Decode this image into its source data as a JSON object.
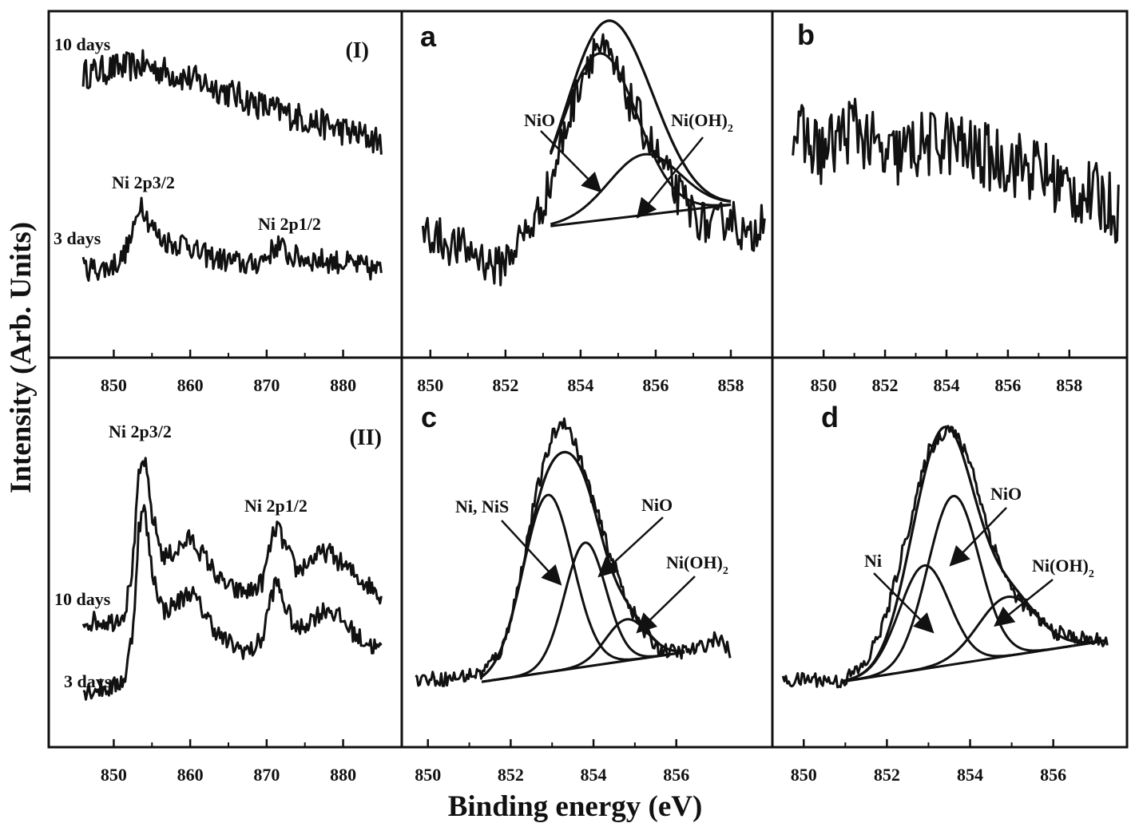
{
  "figure": {
    "ylabel": "Intensity (Arb. Units)",
    "xlabel": "Binding energy (eV)",
    "line_color": "#111111",
    "background": "#ffffff"
  },
  "chart_data": [
    {
      "id": "I",
      "type": "line",
      "panel_label": "(I)",
      "xlim": [
        844,
        886
      ],
      "xticks": [
        "850",
        "860",
        "870",
        "880"
      ],
      "xtick_values": [
        850,
        860,
        870,
        880
      ],
      "annotations": [
        "10 days",
        "Ni 2p3/2",
        "3 days",
        "Ni 2p1/2"
      ],
      "series": [
        {
          "name": "10 days",
          "x": [
            846,
            850,
            854,
            858,
            862,
            866,
            870,
            874,
            878,
            882,
            885
          ],
          "y": [
            0.86,
            0.88,
            0.89,
            0.86,
            0.83,
            0.79,
            0.75,
            0.72,
            0.69,
            0.66,
            0.64
          ],
          "noise": 0.05
        },
        {
          "name": "3 days",
          "x": [
            846,
            849,
            851,
            852.5,
            853.5,
            854.5,
            856,
            858,
            859.5,
            861,
            864,
            868,
            870,
            871.5,
            873,
            876,
            880,
            885
          ],
          "y": [
            0.22,
            0.22,
            0.25,
            0.33,
            0.45,
            0.38,
            0.32,
            0.3,
            0.31,
            0.27,
            0.25,
            0.23,
            0.26,
            0.3,
            0.26,
            0.25,
            0.24,
            0.21
          ],
          "noise": 0.04
        }
      ]
    },
    {
      "id": "II",
      "type": "line",
      "panel_label": "(II)",
      "xlim": [
        844,
        886
      ],
      "xticks": [
        "850",
        "860",
        "870",
        "880"
      ],
      "xtick_values": [
        850,
        860,
        870,
        880
      ],
      "annotations": [
        "Ni 2p3/2",
        "Ni 2p1/2",
        "10 days",
        "3 days"
      ],
      "series": [
        {
          "name": "10 days",
          "x": [
            846,
            850,
            851.5,
            852.5,
            853.3,
            854,
            855,
            856.5,
            858,
            860,
            862,
            864,
            866,
            868,
            869.5,
            870.5,
            871.3,
            872.5,
            874,
            876,
            878,
            880,
            882,
            885
          ],
          "y": [
            0.33,
            0.33,
            0.36,
            0.5,
            0.77,
            0.82,
            0.65,
            0.52,
            0.54,
            0.58,
            0.52,
            0.45,
            0.42,
            0.42,
            0.45,
            0.56,
            0.62,
            0.55,
            0.48,
            0.52,
            0.54,
            0.5,
            0.46,
            0.41
          ],
          "noise": 0.03
        },
        {
          "name": "3 days",
          "x": [
            846,
            850,
            851.5,
            852.5,
            853.3,
            854,
            855,
            856.5,
            858,
            860,
            862,
            864,
            866,
            868,
            869.5,
            870.5,
            871.3,
            872.5,
            874,
            876,
            878,
            880,
            882,
            885
          ],
          "y": [
            0.12,
            0.13,
            0.16,
            0.3,
            0.62,
            0.67,
            0.48,
            0.36,
            0.38,
            0.42,
            0.35,
            0.28,
            0.25,
            0.24,
            0.28,
            0.4,
            0.45,
            0.37,
            0.3,
            0.34,
            0.37,
            0.33,
            0.28,
            0.24
          ],
          "noise": 0.03
        }
      ]
    },
    {
      "id": "a",
      "type": "line",
      "panel_label": "a",
      "xlim": [
        849.6,
        859
      ],
      "xticks": [
        "850",
        "852",
        "854",
        "856",
        "858"
      ],
      "xtick_values": [
        850,
        852,
        854,
        856,
        858
      ],
      "annotations": [
        "NiO",
        "Ni(OH)2"
      ],
      "series": [
        {
          "name": "raw",
          "x": [
            849.8,
            850.5,
            851.2,
            851.8,
            852.3,
            852.8,
            853.2,
            853.6,
            854,
            854.4,
            854.8,
            855.2,
            855.6,
            856,
            856.5,
            857,
            857.5,
            858,
            858.5,
            858.9
          ],
          "y": [
            0.35,
            0.3,
            0.27,
            0.22,
            0.3,
            0.38,
            0.5,
            0.68,
            0.85,
            0.96,
            0.9,
            0.8,
            0.7,
            0.6,
            0.48,
            0.4,
            0.35,
            0.4,
            0.3,
            0.42
          ],
          "noise": 0.07
        }
      ],
      "components": [
        {
          "name": "NiO",
          "center": 854.5,
          "sigma": 1.0,
          "amplitude": 0.55
        },
        {
          "name": "Ni(OH)2",
          "center": 855.7,
          "sigma": 0.95,
          "amplitude": 0.2
        }
      ],
      "baseline": {
        "x": [
          853.2,
          858
        ],
        "y": [
          0.36,
          0.43
        ]
      }
    },
    {
      "id": "b",
      "type": "line",
      "panel_label": "b",
      "xlim": [
        848.8,
        859.8
      ],
      "xticks": [
        "850",
        "852",
        "854",
        "856",
        "858"
      ],
      "xtick_values": [
        850,
        852,
        854,
        856,
        858
      ],
      "annotations": [],
      "series": [
        {
          "name": "raw",
          "x": [
            849,
            850,
            851,
            852,
            853,
            854,
            855,
            856,
            857,
            858,
            859,
            859.6
          ],
          "y": [
            0.65,
            0.58,
            0.68,
            0.55,
            0.6,
            0.62,
            0.57,
            0.55,
            0.52,
            0.45,
            0.42,
            0.38
          ],
          "noise": 0.12
        }
      ]
    },
    {
      "id": "c",
      "type": "line",
      "panel_label": "c",
      "xlim": [
        849.6,
        857.8
      ],
      "xticks": [
        "850",
        "852",
        "854",
        "856"
      ],
      "xtick_values": [
        850,
        852,
        854,
        856
      ],
      "annotations": [
        "Ni, NiS",
        "NiO",
        "Ni(OH)2"
      ],
      "series": [
        {
          "name": "raw",
          "x": [
            849.7,
            850.5,
            851.3,
            851.8,
            852.2,
            852.6,
            853,
            853.3,
            853.6,
            854,
            854.4,
            854.8,
            855.2,
            855.6,
            856,
            856.5,
            857,
            857.3
          ],
          "y": [
            0.08,
            0.08,
            0.1,
            0.18,
            0.4,
            0.7,
            0.9,
            0.96,
            0.86,
            0.68,
            0.5,
            0.35,
            0.24,
            0.18,
            0.17,
            0.18,
            0.22,
            0.17
          ],
          "noise": 0.025
        }
      ],
      "components": [
        {
          "name": "Ni, NiS",
          "center": 852.9,
          "sigma": 0.6,
          "amplitude": 0.6
        },
        {
          "name": "NiO",
          "center": 853.8,
          "sigma": 0.5,
          "amplitude": 0.42
        },
        {
          "name": "Ni(OH)2",
          "center": 854.8,
          "sigma": 0.5,
          "amplitude": 0.14
        }
      ],
      "baseline": {
        "x": [
          851.3,
          856.2
        ],
        "y": [
          0.07,
          0.17
        ]
      }
    },
    {
      "id": "d",
      "type": "line",
      "panel_label": "d",
      "xlim": [
        849.4,
        857.6
      ],
      "xticks": [
        "850",
        "852",
        "854",
        "856"
      ],
      "xtick_values": [
        850,
        852,
        854,
        856
      ],
      "annotations": [
        "Ni",
        "NiO",
        "Ni(OH)2"
      ],
      "series": [
        {
          "name": "raw",
          "x": [
            849.5,
            850.2,
            850.9,
            851.5,
            852,
            852.5,
            853,
            853.5,
            854,
            854.5,
            855,
            855.5,
            856,
            856.5,
            857,
            857.3
          ],
          "y": [
            0.07,
            0.08,
            0.07,
            0.13,
            0.3,
            0.58,
            0.85,
            0.94,
            0.82,
            0.55,
            0.38,
            0.3,
            0.24,
            0.22,
            0.21,
            0.21
          ],
          "noise": 0.025
        }
      ],
      "components": [
        {
          "name": "Ni",
          "center": 852.9,
          "sigma": 0.6,
          "amplitude": 0.35
        },
        {
          "name": "NiO",
          "center": 853.6,
          "sigma": 0.62,
          "amplitude": 0.57
        },
        {
          "name": "Ni(OH)2",
          "center": 854.9,
          "sigma": 0.7,
          "amplitude": 0.2
        }
      ],
      "baseline": {
        "x": [
          850.9,
          857.3
        ],
        "y": [
          0.07,
          0.21
        ]
      }
    }
  ]
}
